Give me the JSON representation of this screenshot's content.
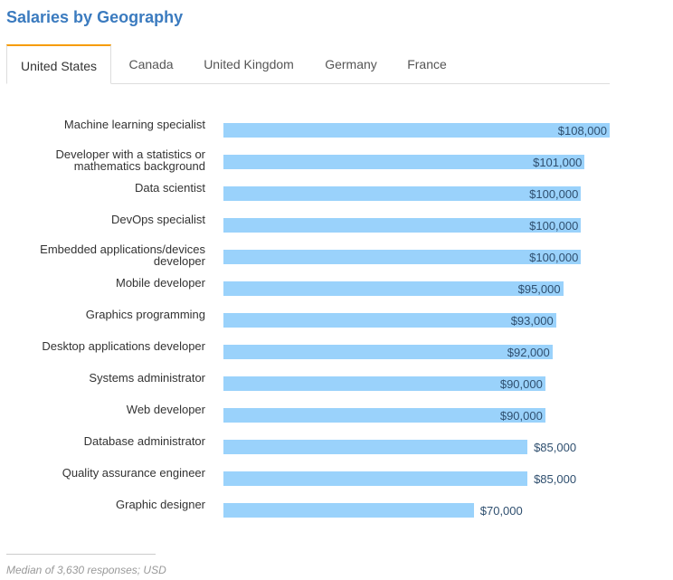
{
  "title": "Salaries by Geography",
  "tabs": [
    "United States",
    "Canada",
    "United Kingdom",
    "Germany",
    "France"
  ],
  "active_tab": 0,
  "chart_data": {
    "type": "bar",
    "orientation": "horizontal",
    "categories": [
      "Machine learning specialist",
      "Developer with a statistics or mathematics background",
      "Data scientist",
      "DevOps specialist",
      "Embedded applications/devices developer",
      "Mobile developer",
      "Graphics programming",
      "Desktop applications developer",
      "Systems administrator",
      "Web developer",
      "Database administrator",
      "Quality assurance engineer",
      "Graphic designer"
    ],
    "values": [
      108000,
      101000,
      100000,
      100000,
      100000,
      95000,
      93000,
      92000,
      90000,
      90000,
      85000,
      85000,
      70000
    ],
    "value_labels": [
      "$108,000",
      "$101,000",
      "$100,000",
      "$100,000",
      "$100,000",
      "$95,000",
      "$93,000",
      "$92,000",
      "$90,000",
      "$90,000",
      "$85,000",
      "$85,000",
      "$70,000"
    ],
    "color": "#9ad2fb",
    "xlim": [
      0,
      108000
    ]
  },
  "footnote": "Median of 3,630 responses; USD"
}
